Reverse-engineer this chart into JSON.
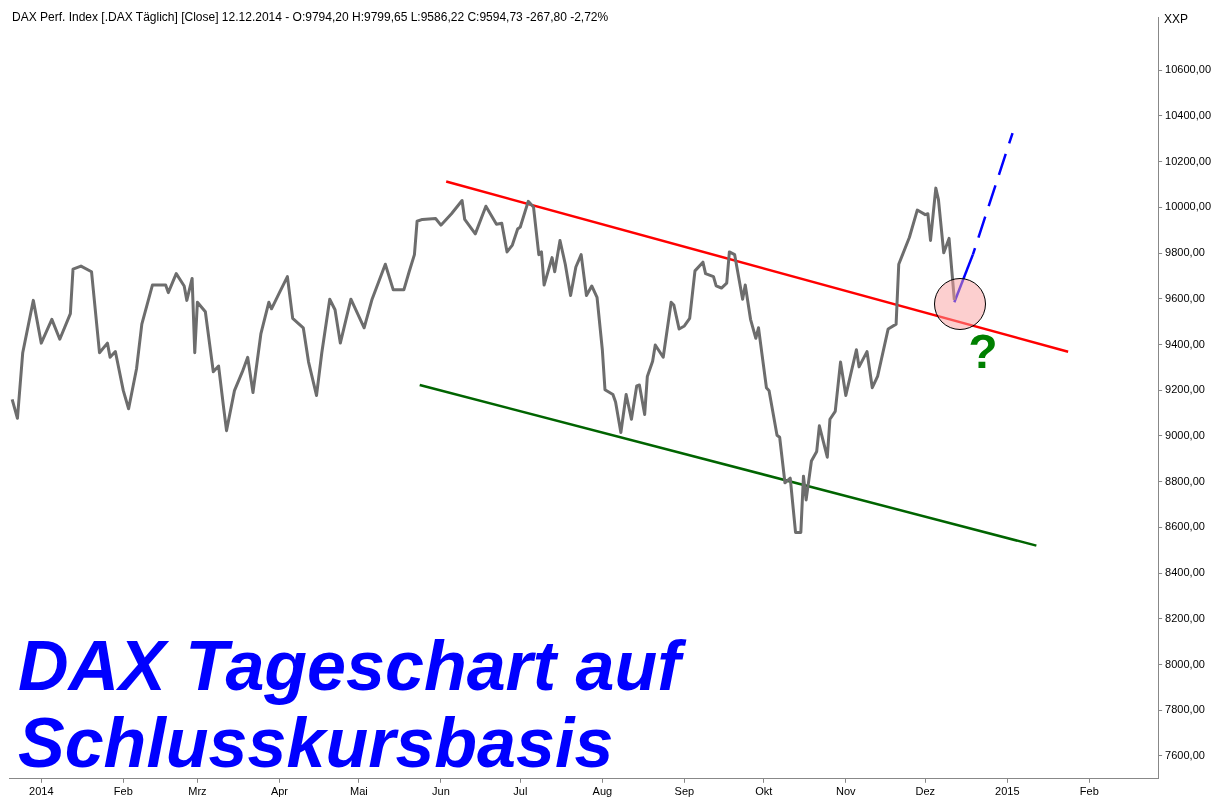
{
  "chart_data": {
    "type": "line",
    "title": "DAX Tageschart auf Schlusskursbasis",
    "subtitle": "DAX Perf. Index [.DAX  Täglich] [Close] 12.12.2014 - O:9794,20 H:9799,65 L:9586,22 C:9594,73 -267,80 -2,72%",
    "ylabel": "XXP",
    "annotations": [
      "?"
    ],
    "xlim": [
      "2013-12-20",
      "2015-02-27"
    ],
    "xticks": [
      {
        "value": "2014-01-01",
        "label": "2014"
      },
      {
        "value": "2014-02-01",
        "label": "Feb"
      },
      {
        "value": "2014-03-01",
        "label": "Mrz"
      },
      {
        "value": "2014-04-01",
        "label": "Apr"
      },
      {
        "value": "2014-05-01",
        "label": "Mai"
      },
      {
        "value": "2014-06-01",
        "label": "Jun"
      },
      {
        "value": "2014-07-01",
        "label": "Jul"
      },
      {
        "value": "2014-08-01",
        "label": "Aug"
      },
      {
        "value": "2014-09-01",
        "label": "Sep"
      },
      {
        "value": "2014-10-01",
        "label": "Okt"
      },
      {
        "value": "2014-11-01",
        "label": "Nov"
      },
      {
        "value": "2014-12-01",
        "label": "Dez"
      },
      {
        "value": "2015-01-01",
        "label": "2015"
      },
      {
        "value": "2015-02-01",
        "label": "Feb"
      }
    ],
    "ylim": [
      7500,
      10830
    ],
    "yticks": [
      {
        "value": 7600,
        "label": "7600,00"
      },
      {
        "value": 7800,
        "label": "7800,00"
      },
      {
        "value": 8000,
        "label": "8000,00"
      },
      {
        "value": 8200,
        "label": "8200,00"
      },
      {
        "value": 8400,
        "label": "8400,00"
      },
      {
        "value": 8600,
        "label": "8600,00"
      },
      {
        "value": 8800,
        "label": "8800,00"
      },
      {
        "value": 9000,
        "label": "9000,00"
      },
      {
        "value": 9200,
        "label": "9200,00"
      },
      {
        "value": 9400,
        "label": "9400,00"
      },
      {
        "value": 9600,
        "label": "9600,00"
      },
      {
        "value": 9800,
        "label": "9800,00"
      },
      {
        "value": 10000,
        "label": "10000,00"
      },
      {
        "value": 10200,
        "label": "10200,00"
      },
      {
        "value": 10400,
        "label": "10400,00"
      },
      {
        "value": 10600,
        "label": "10600,00"
      }
    ],
    "grid": false,
    "legend": false,
    "marker": "none",
    "series": [
      {
        "color": "#6d6d6d",
        "x": [
          "2013-12-21",
          "2013-12-23",
          "2013-12-25",
          "2013-12-29",
          "2014-01-01",
          "2014-01-05",
          "2014-01-08",
          "2014-01-12",
          "2014-01-13",
          "2014-01-16",
          "2014-01-20",
          "2014-01-23",
          "2014-01-26",
          "2014-01-27",
          "2014-01-29",
          "2014-02-01",
          "2014-02-03",
          "2014-02-06",
          "2014-02-08",
          "2014-02-12",
          "2014-02-17",
          "2014-02-18",
          "2014-02-21",
          "2014-02-24",
          "2014-02-25",
          "2014-02-27",
          "2014-02-28",
          "2014-03-01",
          "2014-03-04",
          "2014-03-07",
          "2014-03-09",
          "2014-03-11",
          "2014-03-12",
          "2014-03-15",
          "2014-03-18",
          "2014-03-20",
          "2014-03-22",
          "2014-03-25",
          "2014-03-28",
          "2014-03-29",
          "2014-04-01",
          "2014-04-04",
          "2014-04-06",
          "2014-04-10",
          "2014-04-12",
          "2014-04-15",
          "2014-04-17",
          "2014-04-20",
          "2014-04-22",
          "2014-04-24",
          "2014-04-28",
          "2014-05-03",
          "2014-05-06",
          "2014-05-11",
          "2014-05-14",
          "2014-05-18",
          "2014-05-20",
          "2014-05-22",
          "2014-05-23",
          "2014-05-25",
          "2014-05-30",
          "2014-06-01",
          "2014-06-05",
          "2014-06-09",
          "2014-06-10",
          "2014-06-14",
          "2014-06-18",
          "2014-06-22",
          "2014-06-24",
          "2014-06-26",
          "2014-06-28",
          "2014-06-30",
          "2014-07-01",
          "2014-07-04",
          "2014-07-06",
          "2014-07-08",
          "2014-07-09",
          "2014-07-10",
          "2014-07-13",
          "2014-07-14",
          "2014-07-16",
          "2014-07-18",
          "2014-07-20",
          "2014-07-22",
          "2014-07-24",
          "2014-07-26",
          "2014-07-28",
          "2014-07-30",
          "2014-08-01",
          "2014-08-02",
          "2014-08-05",
          "2014-08-06",
          "2014-08-08",
          "2014-08-10",
          "2014-08-12",
          "2014-08-14",
          "2014-08-15",
          "2014-08-17",
          "2014-08-18",
          "2014-08-20",
          "2014-08-21",
          "2014-08-24",
          "2014-08-27",
          "2014-08-28",
          "2014-08-30",
          "2014-09-01",
          "2014-09-03",
          "2014-09-05",
          "2014-09-08",
          "2014-09-09",
          "2014-09-12",
          "2014-09-13",
          "2014-09-15",
          "2014-09-17",
          "2014-09-18",
          "2014-09-20",
          "2014-09-23",
          "2014-09-24",
          "2014-09-26",
          "2014-09-28",
          "2014-09-29",
          "2014-10-02",
          "2014-10-03",
          "2014-10-06",
          "2014-10-07",
          "2014-10-09",
          "2014-10-11",
          "2014-10-13",
          "2014-10-15",
          "2014-10-16",
          "2014-10-17",
          "2014-10-19",
          "2014-10-21",
          "2014-10-22",
          "2014-10-25",
          "2014-10-26",
          "2014-10-28",
          "2014-10-30",
          "2014-11-01",
          "2014-11-05",
          "2014-11-06",
          "2014-11-09",
          "2014-11-11",
          "2014-11-13",
          "2014-11-17",
          "2014-11-20",
          "2014-11-21",
          "2014-11-25",
          "2014-11-28",
          "2014-12-01",
          "2014-12-02",
          "2014-12-03",
          "2014-12-05",
          "2014-12-06",
          "2014-12-08",
          "2014-12-10",
          "2014-12-12"
        ],
        "values": [
          9160,
          9077,
          9364,
          9593,
          9406,
          9510,
          9423,
          9535,
          9730,
          9743,
          9718,
          9364,
          9406,
          9344,
          9369,
          9198,
          9119,
          9294,
          9489,
          9660,
          9660,
          9627,
          9710,
          9656,
          9593,
          9689,
          9364,
          9585,
          9543,
          9281,
          9306,
          9115,
          9023,
          9198,
          9281,
          9344,
          9190,
          9448,
          9585,
          9556,
          9627,
          9697,
          9514,
          9473,
          9323,
          9177,
          9364,
          9598,
          9552,
          9406,
          9598,
          9473,
          9598,
          9751,
          9639,
          9639,
          9718,
          9793,
          9939,
          9947,
          9951,
          9922,
          9972,
          10030,
          9947,
          9884,
          10005,
          9926,
          9930,
          9805,
          9835,
          9905,
          9914,
          10026,
          10001,
          9793,
          9805,
          9660,
          9780,
          9718,
          9855,
          9751,
          9614,
          9739,
          9793,
          9614,
          9656,
          9606,
          9377,
          9202,
          9181,
          9148,
          9015,
          9181,
          9073,
          9219,
          9223,
          9094,
          9260,
          9327,
          9398,
          9344,
          9585,
          9573,
          9468,
          9481,
          9514,
          9722,
          9760,
          9710,
          9697,
          9656,
          9647,
          9668,
          9805,
          9793,
          9598,
          9660,
          9510,
          9427,
          9473,
          9211,
          9198,
          9003,
          8994,
          8795,
          8815,
          8578,
          8578,
          8824,
          8720,
          8890,
          8932,
          9044,
          8907,
          9073,
          9107,
          9323,
          9177,
          9377,
          9302,
          9369,
          9211,
          9260,
          9468,
          9489,
          9751,
          9868,
          9988,
          9968,
          9972,
          9855,
          10084,
          10034,
          9801,
          9864,
          9595
        ]
      },
      {
        "color": "#ff0000",
        "x": [
          "2014-06-03",
          "2015-01-24"
        ],
        "values": [
          10113,
          9368
        ]
      },
      {
        "color": "#006400",
        "x": [
          "2014-05-24",
          "2015-01-12"
        ],
        "values": [
          9223,
          8520
        ]
      },
      {
        "color": "#0000ff",
        "x": [
          "2014-12-12",
          "2014-12-19"
        ],
        "values": [
          9585,
          9793
        ]
      },
      {
        "color": "#0000ff",
        "line_style": "dashed",
        "x": [
          "2014-12-19",
          "2015-01-03"
        ],
        "values": [
          9793,
          10325
        ]
      }
    ]
  }
}
